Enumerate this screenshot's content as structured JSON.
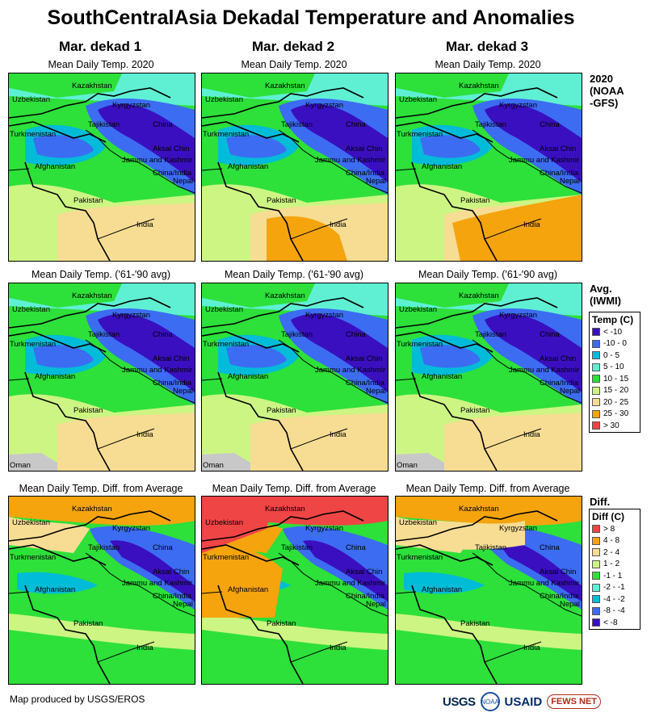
{
  "title": "SouthCentralAsia Dekadal Temperature and Anomalies",
  "columns": [
    "Mar. dekad 1",
    "Mar. dekad 2",
    "Mar. dekad 3"
  ],
  "rows": [
    {
      "subtitle": "Mean Daily Temp. 2020",
      "label_lines": [
        "2020",
        "(NOAA",
        "-GFS)"
      ]
    },
    {
      "subtitle": "Mean Daily Temp. ('61-'90 avg)",
      "label_lines": [
        "Avg.",
        "(IWMI)"
      ]
    },
    {
      "subtitle": "Mean Daily Temp. Diff. from Average",
      "label_lines": [
        "Diff."
      ]
    }
  ],
  "map_labels": {
    "kazakhstan": "Kazakhstan",
    "uzbekistan": "Uzbekistan",
    "kyrgyzstan": "Kyrgyzstan",
    "tajikistan": "Tajikistan",
    "china": "China",
    "turkmenistan": "Turkmenistan",
    "aksai_chin": "Aksai Chin",
    "jammu_kashmir": "Jammu and Kashmir",
    "china_india": "China/India",
    "afghanistan": "Afghanistan",
    "pakistan": "Pakistan",
    "nepal": "Nepal",
    "india": "India",
    "oman": "Oman"
  },
  "temp_legend": {
    "title": "Temp (C)",
    "items": [
      {
        "label": "< -10",
        "color": "#3a0fbf"
      },
      {
        "label": "-10 - 0",
        "color": "#3c6cf2"
      },
      {
        "label": "0 - 5",
        "color": "#00bcd8"
      },
      {
        "label": "5 - 10",
        "color": "#5ff0d4"
      },
      {
        "label": "10 - 15",
        "color": "#2de03a"
      },
      {
        "label": "15 - 20",
        "color": "#cdf583"
      },
      {
        "label": "20 - 25",
        "color": "#f7dd93"
      },
      {
        "label": "25 - 30",
        "color": "#f5a40e"
      },
      {
        "label": "> 30",
        "color": "#ef4545"
      }
    ]
  },
  "diff_legend": {
    "title": "Diff (C)",
    "items": [
      {
        "label": "> 8",
        "color": "#ef4545"
      },
      {
        "label": "4 - 8",
        "color": "#f5a40e"
      },
      {
        "label": "2 - 4",
        "color": "#f7dd93"
      },
      {
        "label": "1 - 2",
        "color": "#cdf583"
      },
      {
        "label": "-1 - 1",
        "color": "#2de03a"
      },
      {
        "label": "-2 - -1",
        "color": "#5ff0d4"
      },
      {
        "label": "-4 - -2",
        "color": "#00bcd8"
      },
      {
        "label": "-8 - -4",
        "color": "#3c6cf2"
      },
      {
        "label": "< -8",
        "color": "#3a0fbf"
      }
    ]
  },
  "footer": "Map produced by USGS/EROS",
  "logos": {
    "usgs": "USGS",
    "noaa": "NOAA",
    "usaid": "USAID",
    "fews": "FEWS NET"
  }
}
